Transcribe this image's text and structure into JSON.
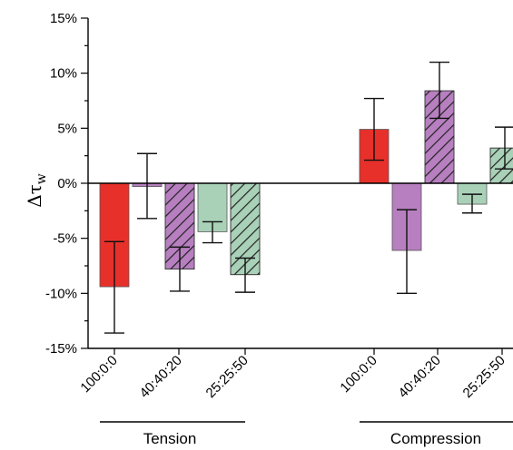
{
  "chart_data": {
    "type": "bar",
    "ylabel": "Δτ",
    "ylabel_subscript": "w",
    "ylim": [
      -15,
      15
    ],
    "y_ticks": [
      -15,
      -10,
      -5,
      0,
      5,
      10,
      15
    ],
    "y_tick_suffix": "%",
    "groups": [
      {
        "name": "Tension",
        "bars": [
          {
            "category": "100:0:0",
            "value": -9.4,
            "err_low": -13.6,
            "err_high": -5.3,
            "color": "#e8302a",
            "hatched": false
          },
          {
            "category": "40:40:20",
            "value": -0.3,
            "err_low": -3.2,
            "err_high": 2.7,
            "color": "#b77fc0",
            "hatched": false
          },
          {
            "category": "40:40:20",
            "value": -7.8,
            "err_low": -9.8,
            "err_high": -5.8,
            "color": "#b77fc0",
            "hatched": true
          },
          {
            "category": "25:25:50",
            "value": -4.4,
            "err_low": -5.4,
            "err_high": -3.5,
            "color": "#a9d1b8",
            "hatched": false
          },
          {
            "category": "25:25:50",
            "value": -8.3,
            "err_low": -9.9,
            "err_high": -6.8,
            "color": "#a9d1b8",
            "hatched": true
          }
        ]
      },
      {
        "name": "Compression",
        "bars": [
          {
            "category": "100:0:0",
            "value": 4.9,
            "err_low": 2.1,
            "err_high": 7.7,
            "color": "#e8302a",
            "hatched": false
          },
          {
            "category": "40:40:20",
            "value": -6.1,
            "err_low": -10.0,
            "err_high": -2.4,
            "color": "#b77fc0",
            "hatched": false
          },
          {
            "category": "40:40:20",
            "value": 8.4,
            "err_low": 5.9,
            "err_high": 11.0,
            "color": "#b77fc0",
            "hatched": true
          },
          {
            "category": "25:25:50",
            "value": -1.9,
            "err_low": -2.7,
            "err_high": -1.0,
            "color": "#a9d1b8",
            "hatched": false
          },
          {
            "category": "25:25:50",
            "value": 3.2,
            "err_low": 1.3,
            "err_high": 5.1,
            "color": "#a9d1b8",
            "hatched": true
          }
        ]
      }
    ],
    "x_tick_labels": [
      {
        "group": 0,
        "text": "100:0:0"
      },
      {
        "group": 0,
        "text": "40:40:20"
      },
      {
        "group": 0,
        "text": "25:25:50"
      },
      {
        "group": 1,
        "text": "100:0:0"
      },
      {
        "group": 1,
        "text": "40:40:20"
      },
      {
        "group": 1,
        "text": "25:25:50"
      }
    ]
  }
}
